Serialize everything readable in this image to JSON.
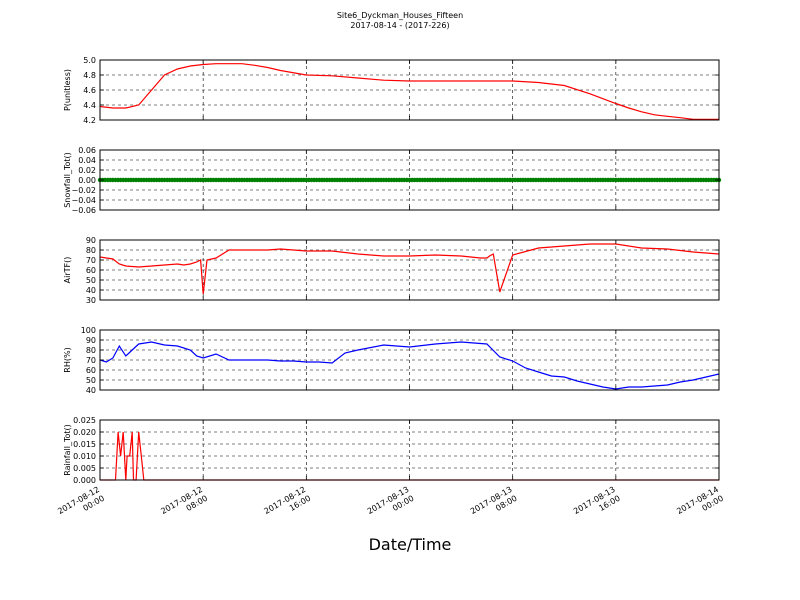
{
  "figure": {
    "title_line1": "Site6_Dyckman_Houses_Fifteen",
    "title_line2": "2017-08-14 - (2017-226)",
    "xlabel": "Date/Time",
    "x_tick_labels": [
      [
        "2017-08-12",
        "00:00"
      ],
      [
        "2017-08-12",
        "08:00"
      ],
      [
        "2017-08-12",
        "16:00"
      ],
      [
        "2017-08-13",
        "00:00"
      ],
      [
        "2017-08-13",
        "08:00"
      ],
      [
        "2017-08-13",
        "16:00"
      ],
      [
        "2017-08-14",
        "00:00"
      ]
    ],
    "grid": true
  },
  "chart_data": [
    {
      "type": "line",
      "ylabel": "P(unitless)",
      "color": "#ff0000",
      "ylim": [
        4.2,
        5.0
      ],
      "yticks": [
        4.2,
        4.4,
        4.6,
        4.8,
        5.0
      ],
      "ytick_labels": [
        "4.2",
        "4.4",
        "4.6",
        "4.8",
        "5.0"
      ],
      "x": [
        0,
        1,
        2,
        3,
        4,
        5,
        6,
        7,
        8,
        9,
        10,
        11,
        12,
        13,
        14,
        16,
        18,
        20,
        22,
        24,
        26,
        28,
        30,
        32,
        34,
        36,
        38,
        40,
        41,
        42,
        43,
        44,
        45,
        46,
        47,
        48
      ],
      "values": [
        4.38,
        4.36,
        4.36,
        4.4,
        4.6,
        4.8,
        4.88,
        4.92,
        4.94,
        4.95,
        4.95,
        4.95,
        4.93,
        4.9,
        4.86,
        4.8,
        4.79,
        4.76,
        4.73,
        4.72,
        4.72,
        4.72,
        4.72,
        4.72,
        4.7,
        4.66,
        4.55,
        4.42,
        4.36,
        4.31,
        4.27,
        4.25,
        4.23,
        4.21,
        4.21,
        4.21
      ]
    },
    {
      "type": "scatter",
      "ylabel": "Snowfall_Tot()",
      "color": "#008000",
      "ylim": [
        -0.06,
        0.06
      ],
      "yticks": [
        -0.06,
        -0.04,
        -0.02,
        0.0,
        0.02,
        0.04,
        0.06
      ],
      "ytick_labels": [
        "−0.06",
        "−0.04",
        "−0.02",
        "0.00",
        "0.02",
        "0.04",
        "0.06"
      ],
      "constant_value": 0.0,
      "x_range": [
        0,
        48
      ]
    },
    {
      "type": "line",
      "ylabel": "AirTF()",
      "color": "#ff0000",
      "ylim": [
        30,
        90
      ],
      "yticks": [
        30,
        40,
        50,
        60,
        70,
        80,
        90
      ],
      "ytick_labels": [
        "30",
        "40",
        "50",
        "60",
        "70",
        "80",
        "90"
      ],
      "x": [
        0,
        1,
        1.5,
        2,
        3,
        4,
        5,
        6,
        6.5,
        7,
        7.5,
        7.8,
        8,
        8.3,
        9,
        10,
        11,
        12,
        13,
        14,
        15,
        16,
        18,
        20,
        22,
        24,
        26,
        28,
        29.5,
        30,
        30.2,
        30.5,
        31,
        32,
        34,
        36,
        38,
        40,
        42,
        44,
        46,
        48
      ],
      "values": [
        73,
        71,
        66,
        64,
        63,
        64,
        65,
        66,
        65,
        66,
        68,
        70,
        36,
        70,
        72,
        80,
        80,
        80,
        80,
        81,
        80,
        79,
        79,
        76,
        74,
        74,
        75,
        74,
        72,
        72,
        74,
        76,
        38,
        75,
        82,
        84,
        86,
        86,
        82,
        81,
        78,
        76
      ]
    },
    {
      "type": "line",
      "ylabel": "RH(%)",
      "color": "#0000ff",
      "ylim": [
        40,
        100
      ],
      "yticks": [
        40,
        50,
        60,
        70,
        80,
        90,
        100
      ],
      "ytick_labels": [
        "40",
        "50",
        "60",
        "70",
        "80",
        "90",
        "100"
      ],
      "x": [
        0,
        0.5,
        1,
        1.5,
        2,
        2.5,
        3,
        4,
        5,
        6,
        7,
        7.5,
        8,
        9,
        10,
        11,
        12,
        13,
        14,
        15,
        16,
        17,
        18,
        19,
        20,
        22,
        24,
        26,
        28,
        30,
        31,
        32,
        33,
        34,
        35,
        36,
        37,
        38,
        39,
        40,
        41,
        42,
        43,
        44,
        45,
        46,
        47,
        48
      ],
      "values": [
        70,
        68,
        72,
        84,
        74,
        80,
        86,
        88,
        85,
        84,
        80,
        74,
        72,
        76,
        70,
        70,
        70,
        70,
        69,
        69,
        68,
        68,
        67,
        77,
        80,
        85,
        83,
        86,
        88,
        86,
        73,
        69,
        62,
        58,
        54,
        53,
        49,
        46,
        43,
        41,
        43,
        43,
        44,
        45,
        48,
        50,
        53,
        56
      ]
    },
    {
      "type": "line",
      "ylabel": "Rainfall_Tot()",
      "color": "#ff0000",
      "ylim": [
        0.0,
        0.025
      ],
      "yticks": [
        0.0,
        0.005,
        0.01,
        0.015,
        0.02,
        0.025
      ],
      "ytick_labels": [
        "0.000",
        "0.005",
        "0.010",
        "0.015",
        "0.020",
        "0.025"
      ],
      "x": [
        0,
        1.2,
        1.4,
        1.6,
        1.8,
        2.0,
        2.1,
        2.3,
        2.5,
        2.6,
        2.8,
        3.0,
        3.2,
        3.4,
        48
      ],
      "values": [
        0,
        0,
        0.02,
        0.01,
        0.02,
        0.0,
        0.01,
        0.01,
        0.02,
        0.0,
        0.0,
        0.02,
        0.01,
        0.0,
        0
      ]
    }
  ]
}
